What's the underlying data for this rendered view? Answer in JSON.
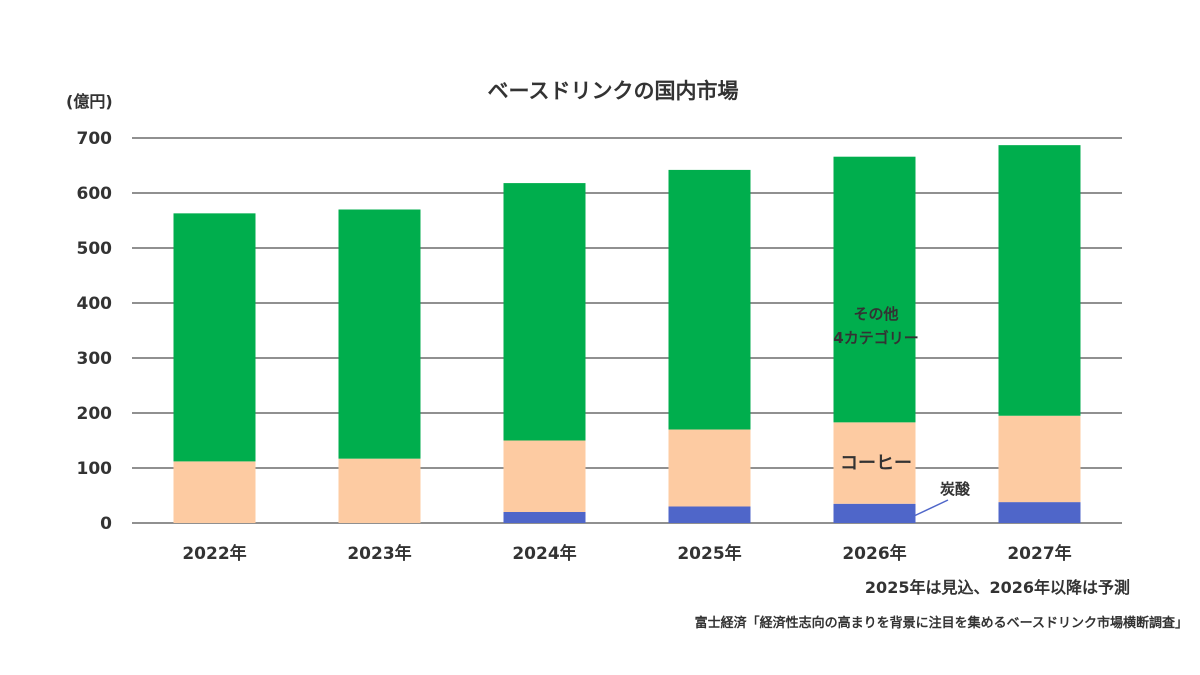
{
  "chart_data": {
    "type": "bar",
    "stacked": true,
    "title": "ベースドリンクの国内市場",
    "ylabel": "(億円)",
    "xlabel": "",
    "ylim": [
      0,
      700
    ],
    "yticks": [
      0,
      100,
      200,
      300,
      400,
      500,
      600,
      700
    ],
    "grid": true,
    "categories": [
      "2022年",
      "2023年",
      "2024年",
      "2025年",
      "2026年",
      "2027年"
    ],
    "series": [
      {
        "name": "炭酸",
        "color": "#4F66C9",
        "values": [
          0,
          0,
          20,
          30,
          35,
          38
        ]
      },
      {
        "name": "コーヒー",
        "color": "#FDCBA2",
        "values": [
          112,
          117,
          130,
          140,
          148,
          157
        ]
      },
      {
        "name": "その他\n4カテゴリー",
        "color": "#00AE4D",
        "values": [
          451,
          453,
          468,
          472,
          483,
          492
        ]
      }
    ],
    "annotations": {
      "other": [
        "その他",
        "4カテゴリー"
      ],
      "coffee": "コーヒー",
      "carbonated": "炭酸"
    },
    "note": "2025年は見込、2026年以降は予測",
    "source": "富士経済「経済性志向の高まりを背景に注目を集めるベースドリンク市場横断調査」"
  }
}
